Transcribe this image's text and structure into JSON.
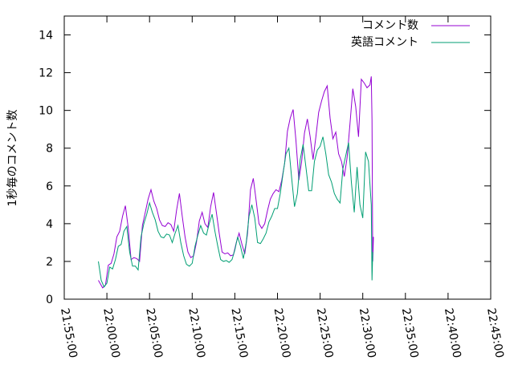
{
  "chart_data": {
    "type": "line",
    "ylabel": "1秒毎のコメント数",
    "xlabel": "",
    "ylim": [
      0,
      15
    ],
    "yticks": [
      0,
      2,
      4,
      6,
      8,
      10,
      12,
      14
    ],
    "xlim": [
      "21:55:00",
      "22:45:00"
    ],
    "xticks": [
      "21:55:00",
      "22:00:00",
      "22:05:00",
      "22:10:00",
      "22:15:00",
      "22:20:00",
      "22:25:00",
      "22:30:00",
      "22:35:00",
      "22:40:00",
      "22:45:00"
    ],
    "grid": false,
    "legend_position": "top-right",
    "series": [
      {
        "name": "コメント数",
        "color": "#9400d3",
        "points": [
          [
            "21:59:00",
            1.0
          ],
          [
            "21:59:30",
            0.6
          ],
          [
            "21:59:50",
            0.75
          ],
          [
            "22:00:10",
            1.8
          ],
          [
            "22:00:30",
            1.9
          ],
          [
            "22:00:50",
            2.4
          ],
          [
            "22:01:10",
            3.3
          ],
          [
            "22:01:30",
            3.6
          ],
          [
            "22:01:50",
            4.4
          ],
          [
            "22:02:10",
            4.95
          ],
          [
            "22:02:30",
            3.8
          ],
          [
            "22:02:50",
            2.1
          ],
          [
            "22:03:10",
            2.2
          ],
          [
            "22:03:30",
            2.15
          ],
          [
            "22:03:50",
            2.0
          ],
          [
            "22:04:10",
            3.9
          ],
          [
            "22:04:30",
            4.6
          ],
          [
            "22:04:50",
            5.3
          ],
          [
            "22:05:10",
            5.8
          ],
          [
            "22:05:30",
            5.2
          ],
          [
            "22:05:50",
            4.8
          ],
          [
            "22:06:10",
            4.2
          ],
          [
            "22:06:30",
            3.9
          ],
          [
            "22:06:50",
            3.85
          ],
          [
            "22:07:10",
            4.05
          ],
          [
            "22:07:30",
            3.95
          ],
          [
            "22:07:50",
            3.6
          ],
          [
            "22:08:10",
            4.7
          ],
          [
            "22:08:30",
            5.6
          ],
          [
            "22:08:50",
            4.4
          ],
          [
            "22:09:10",
            3.3
          ],
          [
            "22:09:30",
            2.5
          ],
          [
            "22:09:50",
            2.2
          ],
          [
            "22:10:10",
            2.3
          ],
          [
            "22:10:30",
            3.0
          ],
          [
            "22:10:50",
            4.15
          ],
          [
            "22:11:10",
            4.6
          ],
          [
            "22:11:30",
            4.0
          ],
          [
            "22:11:50",
            3.8
          ],
          [
            "22:12:10",
            4.9
          ],
          [
            "22:12:30",
            5.65
          ],
          [
            "22:12:50",
            4.6
          ],
          [
            "22:13:10",
            3.5
          ],
          [
            "22:13:30",
            2.5
          ],
          [
            "22:13:50",
            2.4
          ],
          [
            "22:14:10",
            2.45
          ],
          [
            "22:14:30",
            2.3
          ],
          [
            "22:14:50",
            2.35
          ],
          [
            "22:15:10",
            3.0
          ],
          [
            "22:15:30",
            3.5
          ],
          [
            "22:15:50",
            2.9
          ],
          [
            "22:16:10",
            2.4
          ],
          [
            "22:16:30",
            3.5
          ],
          [
            "22:16:50",
            5.8
          ],
          [
            "22:17:10",
            6.4
          ],
          [
            "22:17:30",
            5.2
          ],
          [
            "22:17:50",
            4.0
          ],
          [
            "22:18:10",
            3.75
          ],
          [
            "22:18:30",
            4.0
          ],
          [
            "22:18:50",
            4.7
          ],
          [
            "22:19:10",
            5.3
          ],
          [
            "22:19:30",
            5.6
          ],
          [
            "22:19:50",
            5.8
          ],
          [
            "22:20:10",
            5.7
          ],
          [
            "22:20:30",
            6.3
          ],
          [
            "22:20:50",
            7.2
          ],
          [
            "22:21:10",
            8.9
          ],
          [
            "22:21:30",
            9.6
          ],
          [
            "22:21:50",
            10.05
          ],
          [
            "22:22:10",
            8.4
          ],
          [
            "22:22:30",
            6.3
          ],
          [
            "22:22:50",
            7.3
          ],
          [
            "22:23:10",
            8.8
          ],
          [
            "22:23:30",
            9.55
          ],
          [
            "22:23:50",
            8.6
          ],
          [
            "22:24:10",
            7.4
          ],
          [
            "22:24:30",
            8.6
          ],
          [
            "22:24:50",
            9.9
          ],
          [
            "22:25:10",
            10.5
          ],
          [
            "22:25:30",
            11.0
          ],
          [
            "22:25:50",
            11.3
          ],
          [
            "22:26:10",
            9.6
          ],
          [
            "22:26:30",
            8.5
          ],
          [
            "22:26:50",
            8.85
          ],
          [
            "22:27:10",
            7.7
          ],
          [
            "22:27:30",
            7.3
          ],
          [
            "22:27:50",
            6.5
          ],
          [
            "22:28:10",
            7.5
          ],
          [
            "22:28:30",
            9.3
          ],
          [
            "22:28:50",
            11.15
          ],
          [
            "22:29:10",
            10.2
          ],
          [
            "22:29:30",
            8.6
          ],
          [
            "22:29:50",
            11.65
          ],
          [
            "22:30:10",
            11.45
          ],
          [
            "22:30:30",
            11.2
          ],
          [
            "22:30:50",
            11.35
          ],
          [
            "22:31:00",
            11.8
          ],
          [
            "22:31:05",
            9.5
          ],
          [
            "22:31:10",
            2.0
          ],
          [
            "22:31:15",
            3.3
          ]
        ]
      },
      {
        "name": "英語コメント",
        "color": "#009e73",
        "points": [
          [
            "21:59:00",
            2.0
          ],
          [
            "21:59:20",
            1.0
          ],
          [
            "21:59:40",
            0.65
          ],
          [
            "22:00:00",
            0.85
          ],
          [
            "22:00:20",
            1.7
          ],
          [
            "22:00:40",
            1.6
          ],
          [
            "22:01:00",
            2.1
          ],
          [
            "22:01:20",
            2.8
          ],
          [
            "22:01:40",
            2.9
          ],
          [
            "22:02:00",
            3.6
          ],
          [
            "22:02:20",
            3.85
          ],
          [
            "22:02:40",
            2.5
          ],
          [
            "22:03:00",
            1.75
          ],
          [
            "22:03:20",
            1.75
          ],
          [
            "22:03:40",
            1.55
          ],
          [
            "22:04:00",
            3.3
          ],
          [
            "22:04:20",
            4.0
          ],
          [
            "22:04:40",
            4.5
          ],
          [
            "22:05:00",
            5.1
          ],
          [
            "22:05:20",
            4.6
          ],
          [
            "22:05:40",
            4.2
          ],
          [
            "22:06:00",
            3.6
          ],
          [
            "22:06:20",
            3.3
          ],
          [
            "22:06:40",
            3.25
          ],
          [
            "22:07:00",
            3.45
          ],
          [
            "22:07:20",
            3.4
          ],
          [
            "22:07:40",
            3.0
          ],
          [
            "22:08:00",
            3.5
          ],
          [
            "22:08:20",
            3.9
          ],
          [
            "22:08:40",
            3.0
          ],
          [
            "22:09:00",
            2.3
          ],
          [
            "22:09:20",
            1.85
          ],
          [
            "22:09:40",
            1.75
          ],
          [
            "22:10:00",
            1.9
          ],
          [
            "22:10:20",
            2.8
          ],
          [
            "22:10:40",
            3.4
          ],
          [
            "22:11:00",
            3.9
          ],
          [
            "22:11:20",
            3.5
          ],
          [
            "22:11:40",
            3.4
          ],
          [
            "22:12:00",
            4.0
          ],
          [
            "22:12:20",
            4.5
          ],
          [
            "22:12:40",
            3.6
          ],
          [
            "22:13:00",
            2.8
          ],
          [
            "22:13:20",
            2.1
          ],
          [
            "22:13:40",
            2.0
          ],
          [
            "22:14:00",
            2.05
          ],
          [
            "22:14:20",
            1.95
          ],
          [
            "22:14:40",
            2.1
          ],
          [
            "22:15:00",
            2.6
          ],
          [
            "22:15:20",
            3.3
          ],
          [
            "22:15:40",
            2.8
          ],
          [
            "22:16:00",
            2.15
          ],
          [
            "22:16:20",
            3.0
          ],
          [
            "22:16:40",
            4.4
          ],
          [
            "22:17:00",
            5.0
          ],
          [
            "22:17:20",
            4.3
          ],
          [
            "22:17:40",
            3.0
          ],
          [
            "22:18:00",
            2.95
          ],
          [
            "22:18:20",
            3.2
          ],
          [
            "22:18:40",
            3.5
          ],
          [
            "22:19:00",
            4.1
          ],
          [
            "22:19:20",
            4.4
          ],
          [
            "22:19:40",
            4.8
          ],
          [
            "22:20:00",
            4.8
          ],
          [
            "22:20:20",
            5.6
          ],
          [
            "22:20:40",
            6.7
          ],
          [
            "22:21:00",
            7.7
          ],
          [
            "22:21:20",
            8.0
          ],
          [
            "22:21:40",
            6.4
          ],
          [
            "22:22:00",
            4.9
          ],
          [
            "22:22:20",
            5.6
          ],
          [
            "22:22:40",
            7.4
          ],
          [
            "22:23:00",
            8.2
          ],
          [
            "22:23:20",
            7.0
          ],
          [
            "22:23:40",
            5.75
          ],
          [
            "22:24:00",
            5.75
          ],
          [
            "22:24:20",
            7.3
          ],
          [
            "22:24:40",
            7.9
          ],
          [
            "22:25:00",
            8.1
          ],
          [
            "22:25:20",
            8.6
          ],
          [
            "22:25:40",
            7.7
          ],
          [
            "22:26:00",
            6.6
          ],
          [
            "22:26:20",
            6.2
          ],
          [
            "22:26:40",
            5.6
          ],
          [
            "22:27:00",
            5.3
          ],
          [
            "22:27:20",
            5.1
          ],
          [
            "22:27:40",
            6.9
          ],
          [
            "22:28:00",
            7.6
          ],
          [
            "22:28:20",
            8.3
          ],
          [
            "22:28:40",
            6.2
          ],
          [
            "22:29:00",
            4.6
          ],
          [
            "22:29:20",
            7.0
          ],
          [
            "22:29:40",
            5.0
          ],
          [
            "22:30:00",
            4.3
          ],
          [
            "22:30:20",
            7.8
          ],
          [
            "22:30:40",
            7.3
          ],
          [
            "22:31:00",
            5.0
          ],
          [
            "22:31:05",
            1.0
          ],
          [
            "22:31:10",
            2.5
          ]
        ]
      }
    ]
  }
}
